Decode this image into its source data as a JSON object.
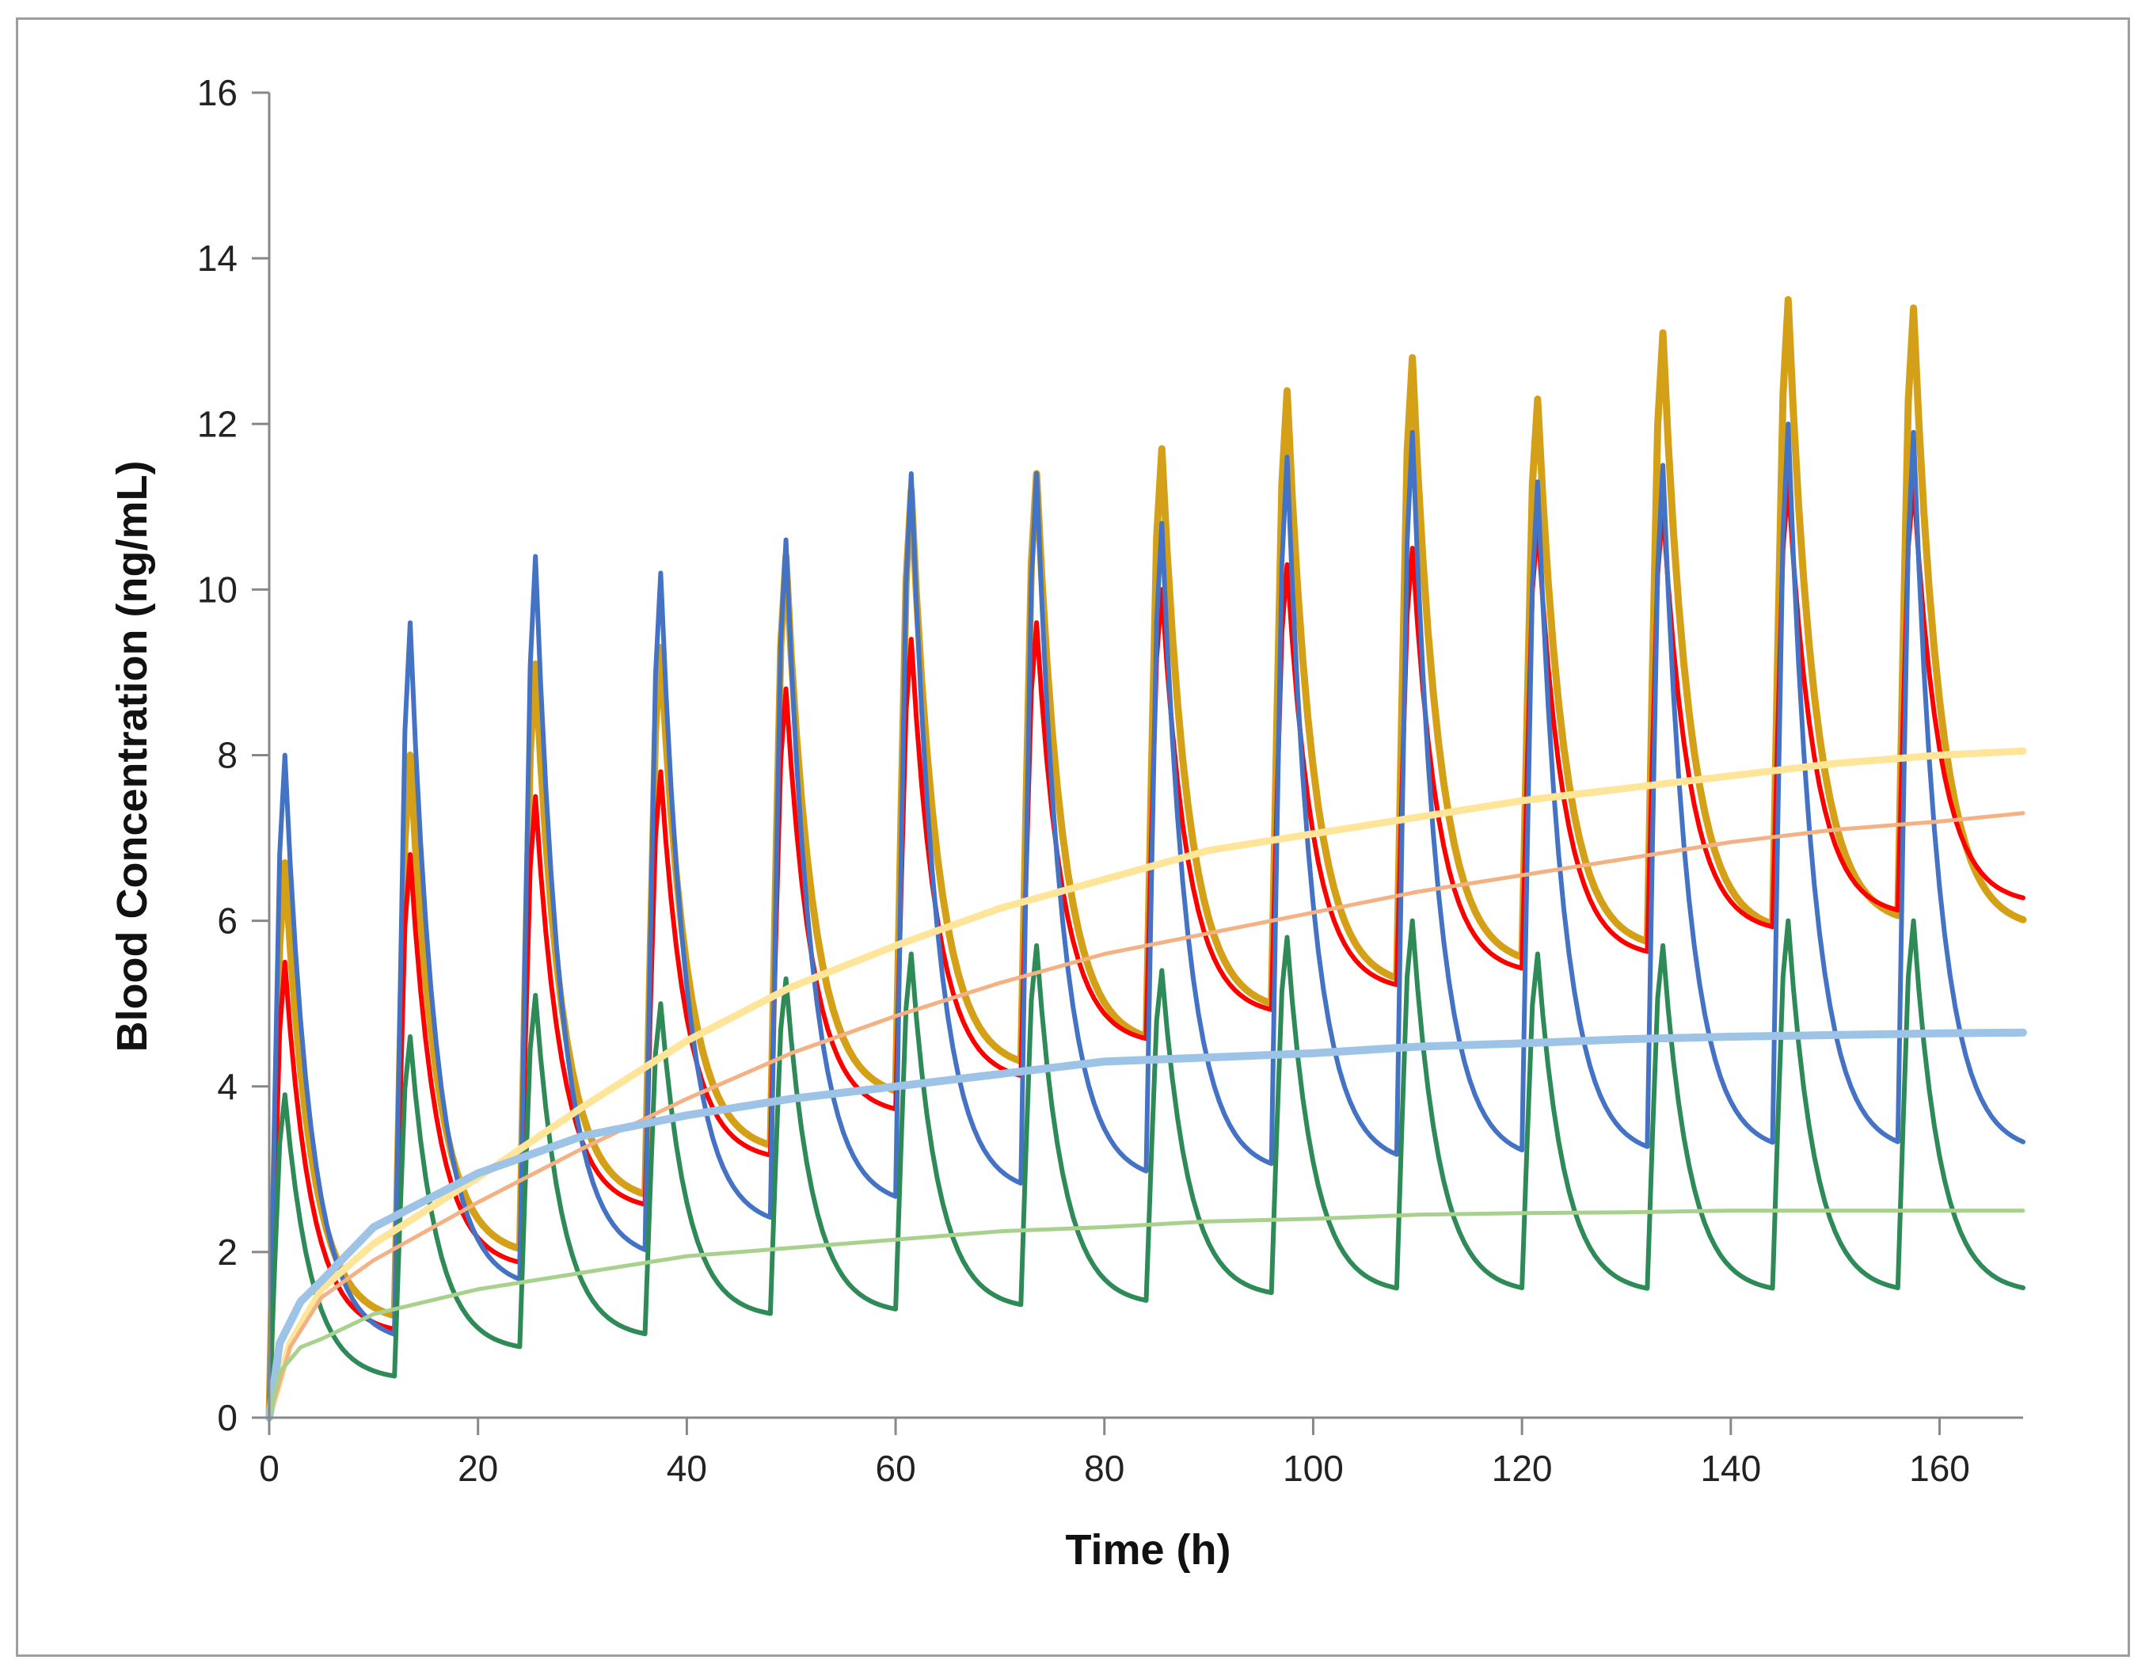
{
  "chart_data": {
    "type": "line",
    "title": "",
    "xlabel": "Time  (h)",
    "ylabel": "Blood Concentration (ng/mL)",
    "xlim": [
      0,
      168
    ],
    "ylim": [
      0,
      16
    ],
    "xticks": [
      0,
      20,
      40,
      60,
      80,
      100,
      120,
      140,
      160
    ],
    "yticks": [
      0,
      2,
      4,
      6,
      8,
      10,
      12,
      14,
      16
    ],
    "grid": false,
    "legend": "none",
    "dosing_interval_h": 12,
    "series": [
      {
        "color": "#D4A017",
        "line_width": 9,
        "style": "multiple-dose",
        "peaks": [
          6.7,
          8.0,
          9.1,
          9.3,
          10.4,
          11.2,
          11.4,
          11.7,
          12.4,
          12.8,
          12.3,
          13.1,
          13.5,
          13.4
        ],
        "troughs": [
          1.15,
          1.95,
          2.6,
          3.2,
          3.85,
          4.2,
          4.5,
          4.9,
          5.2,
          5.45,
          5.65,
          5.85,
          5.95,
          5.9
        ]
      },
      {
        "color": "#FF0000",
        "line_width": 6,
        "style": "multiple-dose",
        "peaks": [
          5.5,
          6.8,
          7.5,
          7.8,
          8.8,
          9.4,
          9.6,
          10.0,
          10.3,
          10.5,
          10.8,
          11.0,
          11.3,
          11.3
        ],
        "troughs": [
          1.0,
          1.8,
          2.5,
          3.1,
          3.65,
          4.05,
          4.5,
          4.85,
          5.15,
          5.35,
          5.55,
          5.85,
          6.05,
          6.2
        ]
      },
      {
        "color": "#4472C4",
        "line_width": 6,
        "style": "multiple-dose",
        "peaks": [
          8.0,
          9.6,
          10.4,
          10.2,
          10.6,
          11.4,
          11.4,
          10.8,
          11.6,
          11.9,
          11.3,
          11.5,
          12.0,
          11.9
        ],
        "troughs": [
          0.9,
          1.55,
          1.9,
          2.3,
          2.55,
          2.7,
          2.85,
          2.95,
          3.05,
          3.1,
          3.15,
          3.2,
          3.2,
          3.2
        ]
      },
      {
        "color": "#2E8B57",
        "line_width": 6,
        "style": "multiple-dose",
        "peaks": [
          3.9,
          4.6,
          5.1,
          5.0,
          5.3,
          5.6,
          5.7,
          5.4,
          5.8,
          6.0,
          5.6,
          5.7,
          6.0,
          6.0
        ],
        "troughs": [
          0.45,
          0.8,
          0.95,
          1.2,
          1.25,
          1.3,
          1.35,
          1.45,
          1.5,
          1.5,
          1.5,
          1.5,
          1.5,
          1.5
        ]
      },
      {
        "color": "#FFE599",
        "line_width": 9,
        "style": "continuous",
        "x": [
          0,
          2,
          5,
          10,
          20,
          30,
          40,
          50,
          60,
          70,
          80,
          90,
          100,
          110,
          120,
          130,
          140,
          150,
          160,
          168
        ],
        "y": [
          0,
          0.9,
          1.55,
          2.1,
          2.9,
          3.75,
          4.55,
          5.2,
          5.7,
          6.15,
          6.5,
          6.85,
          7.05,
          7.25,
          7.45,
          7.6,
          7.75,
          7.9,
          8.0,
          8.05
        ]
      },
      {
        "color": "#F4B183",
        "line_width": 5,
        "style": "continuous",
        "x": [
          0,
          2,
          5,
          10,
          20,
          30,
          40,
          50,
          60,
          70,
          80,
          90,
          100,
          110,
          120,
          130,
          140,
          150,
          160,
          168
        ],
        "y": [
          0,
          0.85,
          1.45,
          1.9,
          2.6,
          3.25,
          3.85,
          4.4,
          4.85,
          5.25,
          5.6,
          5.85,
          6.1,
          6.35,
          6.55,
          6.75,
          6.95,
          7.1,
          7.2,
          7.3
        ]
      },
      {
        "color": "#9DC3E6",
        "line_width": 10,
        "style": "continuous",
        "x": [
          0,
          1,
          3,
          5,
          10,
          20,
          30,
          40,
          50,
          60,
          70,
          80,
          90,
          100,
          110,
          120,
          130,
          140,
          150,
          160,
          168
        ],
        "y": [
          0,
          0.9,
          1.4,
          1.65,
          2.3,
          2.95,
          3.4,
          3.65,
          3.85,
          4.0,
          4.15,
          4.3,
          4.35,
          4.4,
          4.48,
          4.52,
          4.57,
          4.6,
          4.62,
          4.64,
          4.65
        ]
      },
      {
        "color": "#A9D18E",
        "line_width": 5,
        "style": "continuous",
        "x": [
          0,
          1,
          3,
          5,
          10,
          20,
          30,
          40,
          50,
          60,
          70,
          80,
          90,
          100,
          110,
          120,
          130,
          140,
          150,
          160,
          168
        ],
        "y": [
          0,
          0.55,
          0.85,
          0.95,
          1.25,
          1.55,
          1.75,
          1.95,
          2.05,
          2.15,
          2.25,
          2.3,
          2.37,
          2.4,
          2.45,
          2.47,
          2.48,
          2.5,
          2.5,
          2.5,
          2.5
        ]
      }
    ]
  }
}
